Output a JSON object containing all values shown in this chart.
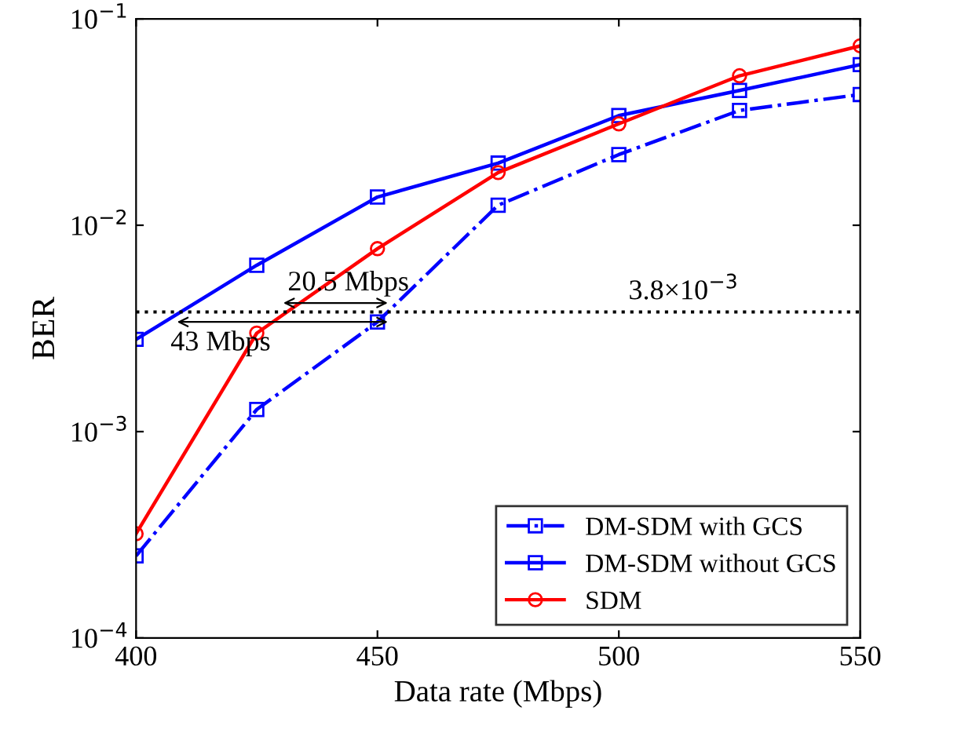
{
  "chart_data": {
    "type": "line",
    "xlabel": "Data rate (Mbps)",
    "ylabel": "BER",
    "x": [
      400,
      425,
      450,
      475,
      500,
      525,
      550
    ],
    "series": [
      {
        "name": "DM-SDM with GCS",
        "color": "#0000ff",
        "values": [
          0.00025,
          0.00128,
          0.0034,
          0.0125,
          0.022,
          0.036,
          0.043
        ],
        "marker": "square",
        "line_style": "dashdot"
      },
      {
        "name": "DM-SDM without GCS",
        "color": "#0000ff",
        "values": [
          0.0028,
          0.0064,
          0.0137,
          0.02,
          0.034,
          0.045,
          0.06
        ],
        "marker": "square",
        "line_style": "solid"
      },
      {
        "name": "SDM",
        "color": "#ff0000",
        "values": [
          0.00032,
          0.003,
          0.0077,
          0.018,
          0.031,
          0.053,
          0.074
        ],
        "marker": "circle",
        "line_style": "solid"
      }
    ],
    "log": "y",
    "xlim": [
      400,
      550
    ],
    "xticks": [
      400,
      450,
      500,
      550
    ],
    "ylim": [
      0.0001,
      0.1
    ],
    "yticks": [
      {
        "value": 0.0001,
        "label": "10$^{−4}$"
      },
      {
        "value": 0.001,
        "label": "10$^{−3}$"
      },
      {
        "value": 0.01,
        "label": "10$^{−2}$"
      },
      {
        "value": 0.1,
        "label": "10$^{−1}$"
      }
    ],
    "ref_lines": [
      {
        "axis": "y",
        "value": 0.0038,
        "label": "3.8×10$^{−3}$",
        "color": "#000000",
        "line_style": "dotted"
      }
    ],
    "annotations": [
      {
        "text": "20.5 Mbps",
        "x": 430.5,
        "y": 0.0042
      },
      {
        "text": "43 Mbps",
        "x": 408.5,
        "y": 0.0034
      }
    ],
    "grid": false,
    "legend": "bottom right"
  }
}
